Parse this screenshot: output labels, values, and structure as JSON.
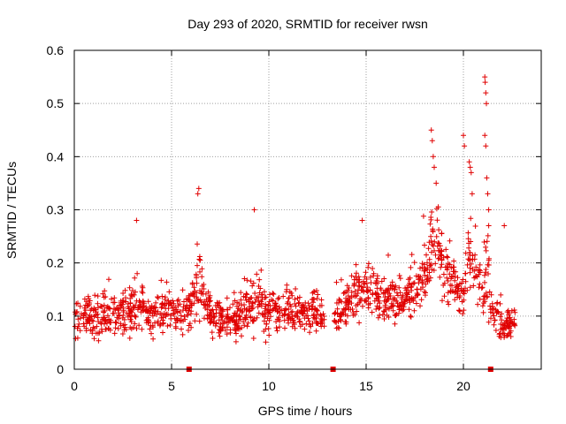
{
  "chart_data": {
    "type": "scatter",
    "title": "Day 293 of 2020, SRMTID for receiver rwsn",
    "xlabel": "GPS time / hours",
    "ylabel": "SRMTID / TECUs",
    "xlim": [
      0,
      24
    ],
    "ylim": [
      0,
      0.6
    ],
    "xticks": [
      0,
      5,
      10,
      15,
      20
    ],
    "yticks": [
      0,
      0.1,
      0.2,
      0.3,
      0.4,
      0.5,
      0.6
    ],
    "xtick_labels": [
      "0",
      "5",
      "10",
      "15",
      "20"
    ],
    "ytick_labels": [
      "0",
      "0.1",
      "0.2",
      "0.3",
      "0.4",
      "0.5",
      "0.6"
    ],
    "grid": true,
    "marker": "+",
    "series_color": "#e00000",
    "axis_markers_x": [
      5.9,
      13.3,
      21.4
    ],
    "envelope": {
      "x": [
        0,
        0.5,
        1,
        2,
        3,
        3.2,
        4,
        5,
        5.5,
        6,
        6.3,
        6.5,
        7,
        8,
        9,
        9.5,
        10,
        11,
        12,
        12.8,
        13.2,
        13.5,
        14,
        14.5,
        15,
        16,
        17,
        17.5,
        18,
        18.5,
        19,
        19.5,
        20,
        20.3,
        20.6,
        21,
        21.2,
        21.4,
        22,
        22.7
      ],
      "base": [
        0.09,
        0.1,
        0.1,
        0.1,
        0.11,
        0.13,
        0.1,
        0.11,
        0.1,
        0.12,
        0.15,
        0.17,
        0.1,
        0.09,
        0.11,
        0.13,
        0.1,
        0.11,
        0.11,
        0.1,
        0.09,
        0.1,
        0.12,
        0.14,
        0.16,
        0.13,
        0.13,
        0.15,
        0.18,
        0.24,
        0.19,
        0.16,
        0.13,
        0.22,
        0.2,
        0.13,
        0.22,
        0.12,
        0.08,
        0.09
      ],
      "spread": [
        0.05,
        0.06,
        0.06,
        0.05,
        0.06,
        0.08,
        0.05,
        0.06,
        0.05,
        0.06,
        0.09,
        0.1,
        0.05,
        0.05,
        0.06,
        0.08,
        0.06,
        0.06,
        0.06,
        0.05,
        0.05,
        0.05,
        0.06,
        0.07,
        0.07,
        0.06,
        0.06,
        0.07,
        0.08,
        0.11,
        0.09,
        0.07,
        0.06,
        0.1,
        0.09,
        0.06,
        0.15,
        0.05,
        0.04,
        0.04
      ]
    },
    "peaks": [
      {
        "x": 3.2,
        "y": 0.28
      },
      {
        "x": 6.35,
        "y": 0.33
      },
      {
        "x": 6.4,
        "y": 0.34
      },
      {
        "x": 9.25,
        "y": 0.3
      },
      {
        "x": 14.8,
        "y": 0.28
      },
      {
        "x": 18.35,
        "y": 0.45
      },
      {
        "x": 18.4,
        "y": 0.43
      },
      {
        "x": 18.45,
        "y": 0.4
      },
      {
        "x": 18.5,
        "y": 0.38
      },
      {
        "x": 18.6,
        "y": 0.35
      },
      {
        "x": 20.0,
        "y": 0.44
      },
      {
        "x": 20.05,
        "y": 0.42
      },
      {
        "x": 20.3,
        "y": 0.39
      },
      {
        "x": 20.35,
        "y": 0.38
      },
      {
        "x": 20.4,
        "y": 0.37
      },
      {
        "x": 20.45,
        "y": 0.33
      },
      {
        "x": 21.1,
        "y": 0.55
      },
      {
        "x": 21.12,
        "y": 0.54
      },
      {
        "x": 21.15,
        "y": 0.52
      },
      {
        "x": 21.18,
        "y": 0.5
      },
      {
        "x": 21.1,
        "y": 0.44
      },
      {
        "x": 21.15,
        "y": 0.42
      },
      {
        "x": 21.2,
        "y": 0.36
      },
      {
        "x": 21.25,
        "y": 0.33
      },
      {
        "x": 21.3,
        "y": 0.3
      },
      {
        "x": 21.3,
        "y": 0.27
      },
      {
        "x": 22.1,
        "y": 0.27
      }
    ]
  }
}
